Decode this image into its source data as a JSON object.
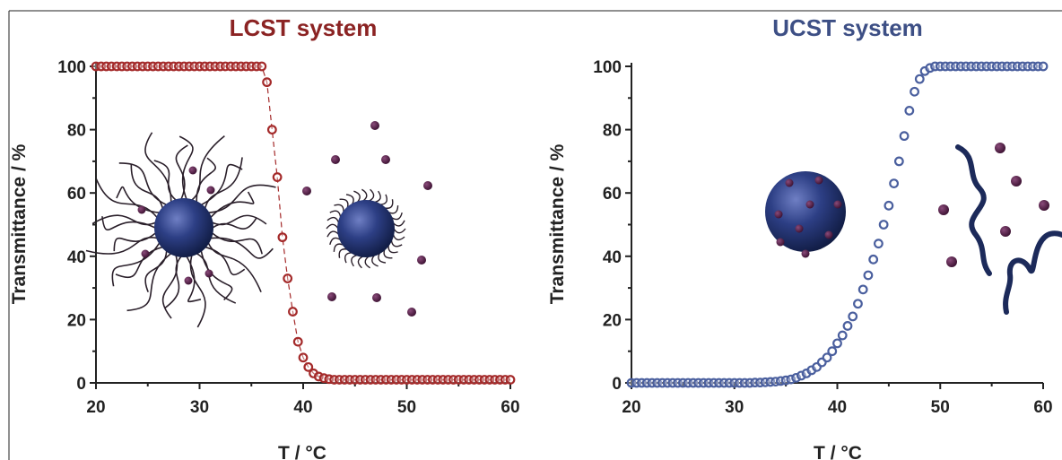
{
  "chart_data": [
    {
      "type": "scatter",
      "title": "LCST system",
      "xlabel": "T / °C",
      "ylabel": "Transmittance / %",
      "xlim": [
        20,
        60
      ],
      "ylim": [
        0,
        100
      ],
      "xticks": [
        "20",
        "30",
        "40",
        "50",
        "60"
      ],
      "yticks": [
        "0",
        "20",
        "40",
        "60",
        "80",
        "100"
      ],
      "grid": false,
      "connector_line": "dashed",
      "title_color": "#8b2323",
      "marker_color": "#a42a2a",
      "series": [
        {
          "x": [
            20,
            20.5,
            21,
            21.5,
            22,
            22.5,
            23,
            23.5,
            24,
            24.5,
            25,
            25.5,
            26,
            26.5,
            27,
            27.5,
            28,
            28.5,
            29,
            29.5,
            30,
            30.5,
            31,
            31.5,
            32,
            32.5,
            33,
            33.5,
            34,
            34.5,
            35,
            35.5,
            36,
            36.5,
            37,
            37.5,
            38,
            38.5,
            39,
            39.5,
            40,
            40.5,
            41,
            41.5,
            42,
            42.5,
            43,
            43.5,
            44,
            44.5,
            45,
            45.5,
            46,
            46.5,
            47,
            47.5,
            48,
            48.5,
            49,
            49.5,
            50,
            50.5,
            51,
            51.5,
            52,
            52.5,
            53,
            53.5,
            54,
            54.5,
            55,
            55.5,
            56,
            56.5,
            57,
            57.5,
            58,
            58.5,
            59,
            59.5,
            60
          ],
          "y": [
            100,
            100,
            100,
            100,
            100,
            100,
            100,
            100,
            100,
            100,
            100,
            100,
            100,
            100,
            100,
            100,
            100,
            100,
            100,
            100,
            100,
            100,
            100,
            100,
            100,
            100,
            100,
            100,
            100,
            100,
            100,
            100,
            100,
            95,
            80,
            65,
            46,
            33,
            22.5,
            13,
            8,
            5,
            3,
            2,
            1.5,
            1.2,
            1,
            1,
            1,
            1,
            1,
            1,
            1,
            1,
            1,
            1,
            1,
            1,
            1,
            1,
            1,
            1,
            1,
            1,
            1,
            1,
            1,
            1,
            1,
            1,
            1,
            1,
            1,
            1,
            1,
            1,
            1,
            1,
            1,
            1,
            1
          ]
        }
      ]
    },
    {
      "type": "scatter",
      "title": "UCST system",
      "xlabel": "T / °C",
      "ylabel": "Transmittance / %",
      "xlim": [
        20,
        60
      ],
      "ylim": [
        0,
        100
      ],
      "xticks": [
        "20",
        "30",
        "40",
        "50",
        "60"
      ],
      "yticks": [
        "0",
        "20",
        "40",
        "60",
        "80",
        "100"
      ],
      "grid": false,
      "connector_line": "none",
      "title_color": "#3d4f85",
      "marker_color": "#4a5f9e",
      "series": [
        {
          "x": [
            20,
            20.5,
            21,
            21.5,
            22,
            22.5,
            23,
            23.5,
            24,
            24.5,
            25,
            25.5,
            26,
            26.5,
            27,
            27.5,
            28,
            28.5,
            29,
            29.5,
            30,
            30.5,
            31,
            31.5,
            32,
            32.5,
            33,
            33.5,
            34,
            34.5,
            35,
            35.5,
            36,
            36.5,
            37,
            37.5,
            38,
            38.5,
            39,
            39.5,
            40,
            40.5,
            41,
            41.5,
            42,
            42.5,
            43,
            43.5,
            44,
            44.5,
            45,
            45.5,
            46,
            46.5,
            47,
            47.5,
            48,
            48.5,
            49,
            49.5,
            50,
            50.5,
            51,
            51.5,
            52,
            52.5,
            53,
            53.5,
            54,
            54.5,
            55,
            55.5,
            56,
            56.5,
            57,
            57.5,
            58,
            58.5,
            59,
            59.5,
            60
          ],
          "y": [
            0,
            0,
            0,
            0,
            0,
            0,
            0,
            0,
            0,
            0,
            0,
            0,
            0,
            0,
            0,
            0,
            0,
            0,
            0,
            0,
            0,
            0,
            0,
            0,
            0.1,
            0.1,
            0.2,
            0.3,
            0.4,
            0.6,
            0.8,
            1.1,
            1.6,
            2.3,
            3,
            4,
            5,
            6.5,
            8,
            10,
            12.5,
            15,
            18,
            21,
            25,
            29.5,
            34,
            39,
            44,
            50,
            56,
            63,
            70,
            78,
            86,
            92,
            96,
            98.5,
            99.5,
            100,
            100,
            100,
            100,
            100,
            100,
            100,
            100,
            100,
            100,
            100,
            100,
            100,
            100,
            100,
            100,
            100,
            100,
            100,
            100,
            100,
            100
          ]
        }
      ]
    }
  ]
}
